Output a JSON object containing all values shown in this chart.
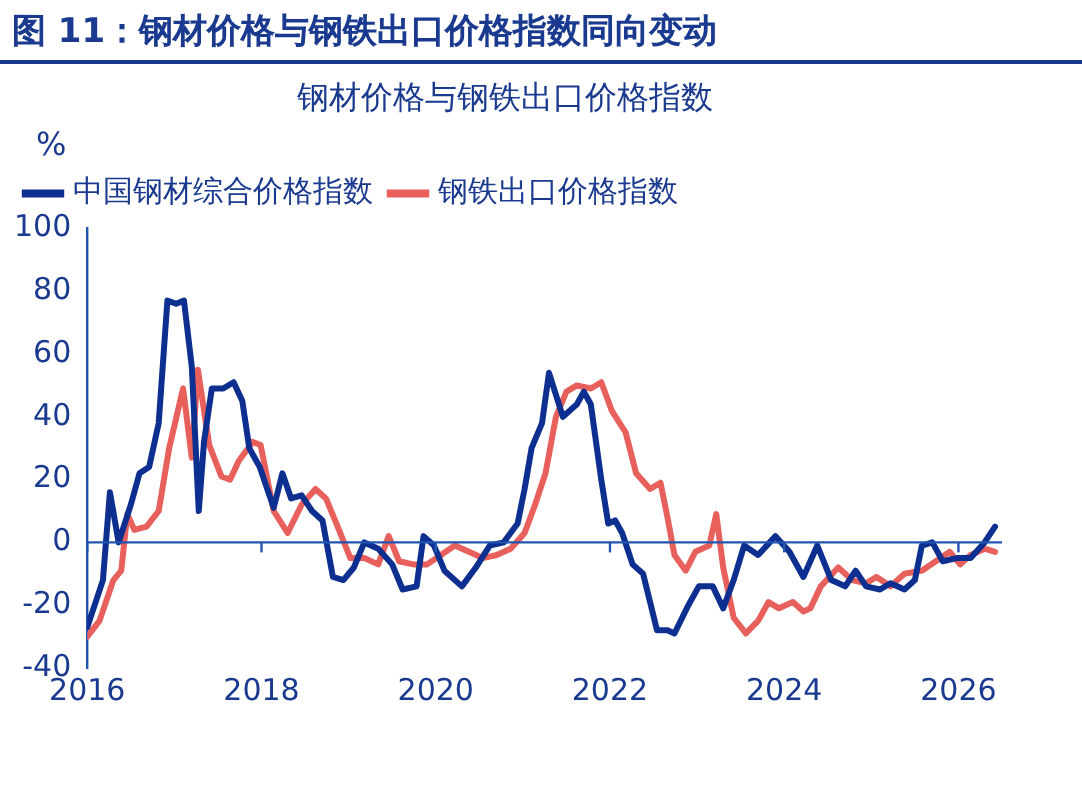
{
  "chart_data": {
    "type": "line",
    "title": "图 11：钢材价格与钢铁出口价格指数同向变动",
    "subtitle": "钢材价格与钢铁出口价格指数",
    "ylabel": "%",
    "xlim": [
      2016,
      2026.5
    ],
    "xticks": [
      2016,
      2018,
      2020,
      2022,
      2024,
      2026
    ],
    "ylim": [
      -40,
      100
    ],
    "yticks": [
      -40,
      -20,
      0,
      20,
      40,
      60,
      80,
      100
    ],
    "ref_lines": [
      {
        "axis": "y",
        "value": 0,
        "color": "#2255b0"
      }
    ],
    "grid": false,
    "legend": "top left",
    "marker": "none",
    "line_style": "solid",
    "series": [
      {
        "name": "中国钢材综合价格指数",
        "color": "#0d2f8f",
        "x": [
          2016.0,
          2016.18,
          2016.26,
          2016.36,
          2016.5,
          2016.6,
          2016.71,
          2016.82,
          2016.92,
          2017.02,
          2017.11,
          2017.2,
          2017.28,
          2017.34,
          2017.43,
          2017.56,
          2017.68,
          2017.78,
          2017.86,
          2017.98,
          2018.14,
          2018.24,
          2018.34,
          2018.46,
          2018.58,
          2018.7,
          2018.82,
          2018.94,
          2019.06,
          2019.18,
          2019.34,
          2019.5,
          2019.62,
          2019.78,
          2019.86,
          2019.98,
          2020.1,
          2020.3,
          2020.46,
          2020.62,
          2020.78,
          2020.94,
          2021.02,
          2021.1,
          2021.22,
          2021.3,
          2021.46,
          2021.62,
          2021.7,
          2021.78,
          2021.9,
          2021.98,
          2022.06,
          2022.14,
          2022.26,
          2022.38,
          2022.54,
          2022.66,
          2022.74,
          2022.9,
          2023.02,
          2023.18,
          2023.3,
          2023.42,
          2023.54,
          2023.7,
          2023.9,
          2024.06,
          2024.22,
          2024.38,
          2024.54,
          2024.7,
          2024.82,
          2024.94,
          2025.1,
          2025.22,
          2025.38,
          2025.5,
          2025.58,
          2025.7,
          2025.82,
          2025.98,
          2026.14,
          2026.3,
          2026.42
        ],
        "values": [
          -27,
          -12,
          16,
          0,
          12,
          22,
          24,
          38,
          77,
          76,
          77,
          56,
          10,
          32,
          49,
          49,
          51,
          45,
          30,
          24,
          11,
          22,
          14,
          15,
          10,
          7,
          -11,
          -12,
          -8,
          0,
          -2,
          -7,
          -15,
          -14,
          2,
          -1,
          -9,
          -14,
          -8,
          -1,
          0,
          6,
          17,
          30,
          38,
          54,
          40,
          44,
          48,
          44,
          20,
          6,
          7,
          3,
          -7,
          -10,
          -28,
          -28,
          -29,
          -20,
          -14,
          -14,
          -21,
          -12,
          -1,
          -4,
          2,
          -3,
          -11,
          -1,
          -12,
          -14,
          -9,
          -14,
          -15,
          -13,
          -15,
          -12,
          -1,
          0,
          -6,
          -5,
          -5,
          0,
          5
        ]
      },
      {
        "name": "钢铁出口价格指数",
        "color": "#e8605c",
        "x": [
          2016.0,
          2016.14,
          2016.3,
          2016.39,
          2016.46,
          2016.54,
          2016.68,
          2016.82,
          2016.94,
          2017.1,
          2017.2,
          2017.27,
          2017.4,
          2017.54,
          2017.64,
          2017.74,
          2017.9,
          2017.99,
          2018.14,
          2018.3,
          2018.46,
          2018.62,
          2018.74,
          2018.86,
          2019.02,
          2019.18,
          2019.34,
          2019.46,
          2019.58,
          2019.74,
          2019.9,
          2020.06,
          2020.22,
          2020.38,
          2020.54,
          2020.7,
          2020.86,
          2021.02,
          2021.14,
          2021.26,
          2021.38,
          2021.5,
          2021.62,
          2021.78,
          2021.9,
          2022.02,
          2022.18,
          2022.3,
          2022.46,
          2022.58,
          2022.66,
          2022.74,
          2022.87,
          2022.98,
          2023.14,
          2023.22,
          2023.3,
          2023.42,
          2023.56,
          2023.7,
          2023.82,
          2023.94,
          2024.1,
          2024.22,
          2024.3,
          2024.42,
          2024.62,
          2024.78,
          2024.94,
          2025.06,
          2025.22,
          2025.38,
          2025.58,
          2025.74,
          2025.9,
          2026.02,
          2026.14,
          2026.3,
          2026.42
        ],
        "values": [
          -30,
          -25,
          -12,
          -9,
          9,
          4,
          5,
          10,
          30,
          49,
          27,
          55,
          31,
          21,
          20,
          26,
          32,
          31,
          10,
          3,
          12,
          17,
          14,
          6,
          -5,
          -5,
          -7,
          2,
          -6,
          -7,
          -7,
          -4,
          -1,
          -3,
          -5,
          -4,
          -2,
          3,
          12,
          22,
          40,
          48,
          50,
          49,
          51,
          42,
          35,
          22,
          17,
          19,
          8,
          -4,
          -9,
          -3,
          -1,
          9,
          -8,
          -24,
          -29,
          -25,
          -19,
          -21,
          -19,
          -22,
          -21,
          -14,
          -8,
          -12,
          -13,
          -11,
          -14,
          -10,
          -9,
          -6,
          -3,
          -7,
          -4,
          -2,
          -3
        ]
      }
    ]
  }
}
